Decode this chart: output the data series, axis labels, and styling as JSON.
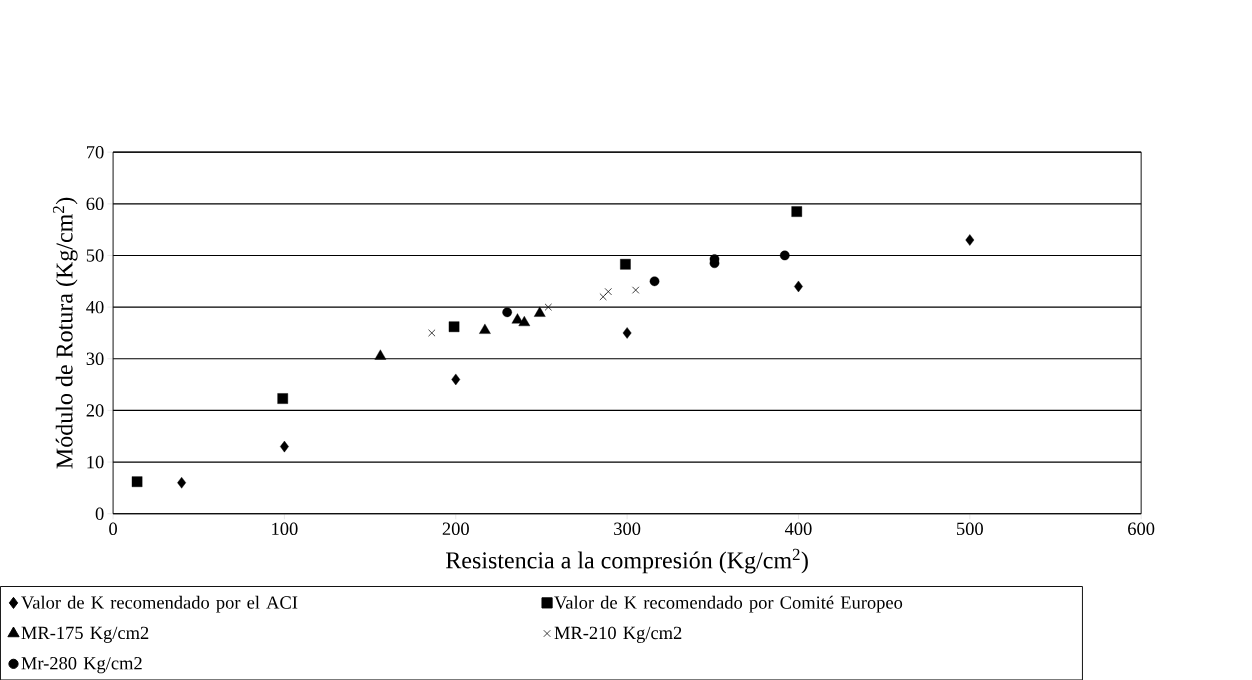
{
  "chart_data": {
    "type": "scatter",
    "xlabel": "Resistencia a la compresión (Kg/cm$^{2}$)",
    "ylabel": "Módulo de Rotura (Kg/cm$^{2}$)",
    "xlim": [
      0,
      600
    ],
    "xticks": [
      0,
      100,
      200,
      300,
      400,
      500,
      600
    ],
    "ylim": [
      0,
      70
    ],
    "yticks": [
      0,
      10,
      20,
      30,
      40,
      50,
      60,
      70
    ],
    "grid": "y",
    "legend": "bottom",
    "series": [
      {
        "name": "Valor de K recomendado por el ACI",
        "color": "#000000",
        "marker": "diamond",
        "x": [
          40,
          100,
          200,
          300,
          400,
          500
        ],
        "values": [
          6,
          13,
          26,
          35,
          44,
          53
        ]
      },
      {
        "name": "Valor de K recomendado por Comité Europeo",
        "color": "#000000",
        "marker": "square",
        "x": [
          14,
          99,
          199,
          299,
          399
        ],
        "values": [
          6.2,
          22.3,
          36.2,
          48.3,
          58.5
        ]
      },
      {
        "name": "MR-175 Kg/cm2",
        "color": "#000000",
        "marker": "triangle",
        "x": [
          156,
          217,
          236,
          240,
          249
        ],
        "values": [
          30.5,
          35.5,
          37.5,
          37,
          38.8
        ]
      },
      {
        "name": "MR-210 Kg/cm2",
        "color": "#000000",
        "marker": "cross",
        "x": [
          186,
          254,
          286,
          289,
          305
        ],
        "values": [
          35,
          40,
          42,
          43,
          43.3
        ]
      },
      {
        "name": "Mr-280 Kg/cm2",
        "color": "#000000",
        "marker": "circle",
        "x": [
          230,
          316,
          351,
          351,
          392
        ],
        "values": [
          39,
          45,
          48.5,
          49.3,
          50
        ]
      }
    ]
  }
}
